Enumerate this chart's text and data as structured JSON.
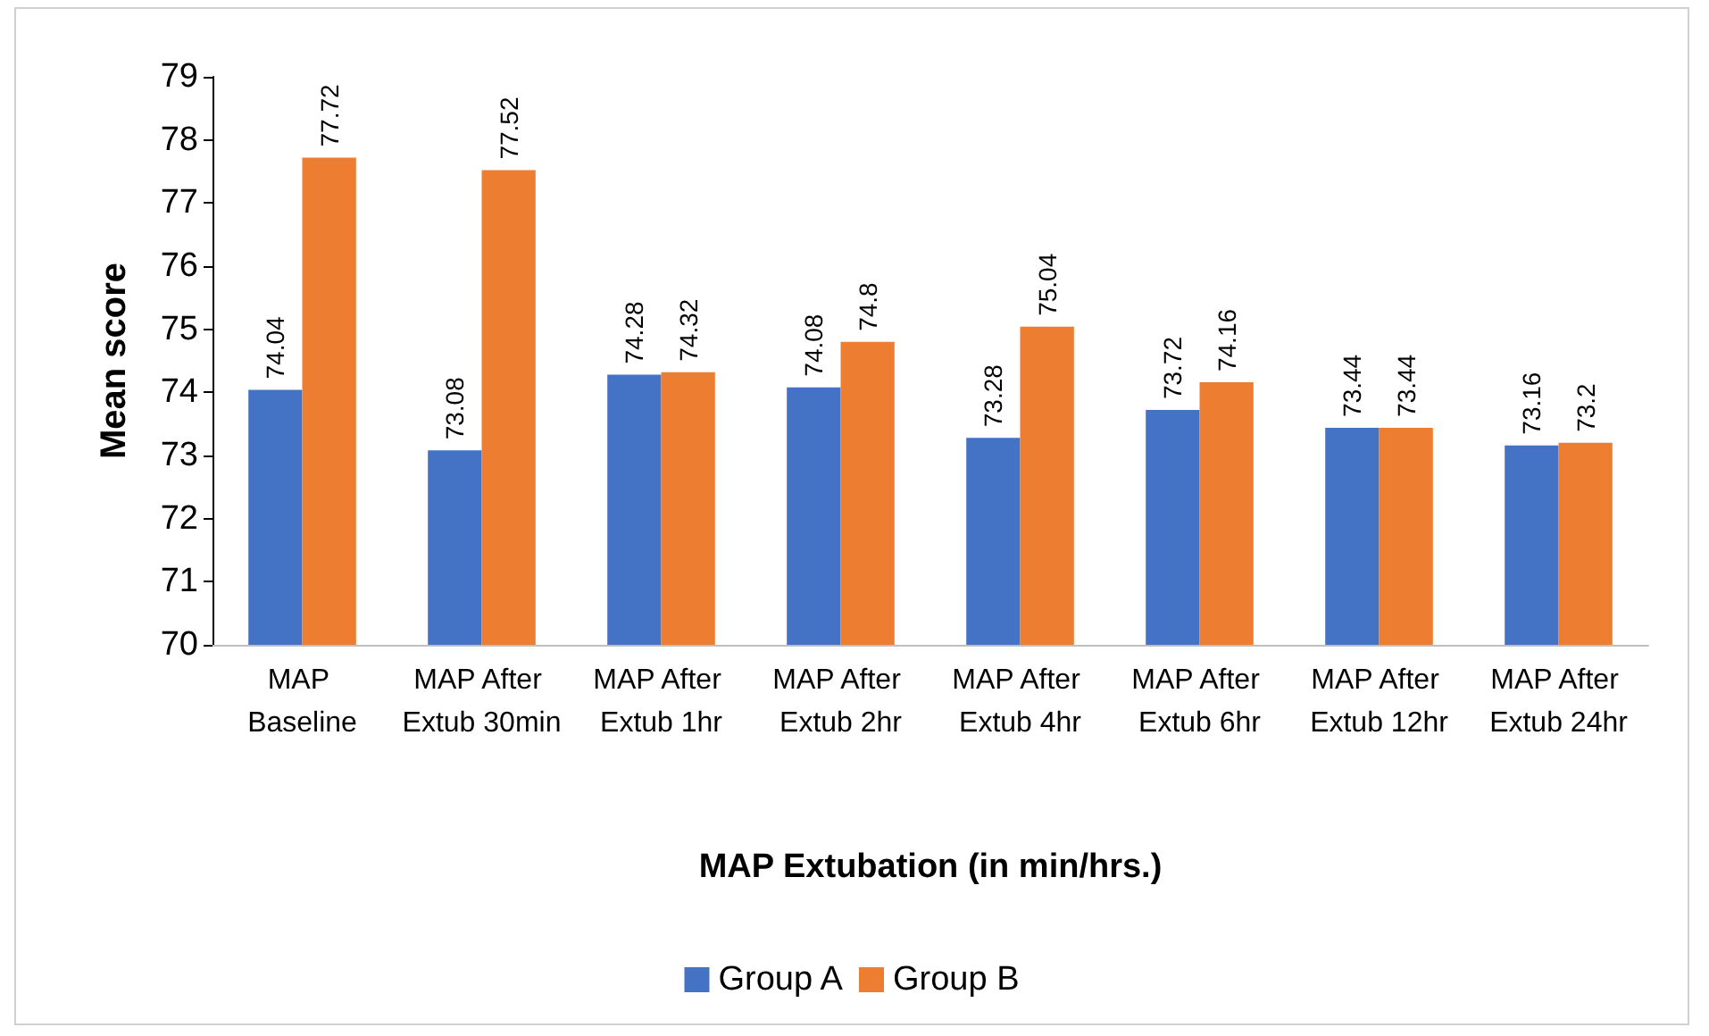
{
  "chart_data": {
    "type": "bar",
    "xlabel": "MAP Extubation (in min/hrs.)",
    "ylabel": "Mean score",
    "categories": [
      "MAP Baseline",
      "MAP After Extub 30min",
      "MAP After Extub 1hr",
      "MAP After Extub 2hr",
      "MAP After Extub 4hr",
      "MAP After Extub 6hr",
      "MAP After Extub 12hr",
      "MAP After Extub 24hr"
    ],
    "series": [
      {
        "name": "Group A",
        "color": "#4472c4",
        "values": [
          74.04,
          73.08,
          74.28,
          74.08,
          73.28,
          73.72,
          73.44,
          73.16
        ]
      },
      {
        "name": "Group B",
        "color": "#ed7d31",
        "values": [
          77.72,
          77.52,
          74.32,
          74.8,
          75.04,
          74.16,
          73.44,
          73.2
        ]
      }
    ],
    "ylim": [
      70,
      79
    ],
    "yticks": [
      70,
      71,
      72,
      73,
      74,
      75,
      76,
      77,
      78,
      79
    ],
    "grid": false,
    "legend": "bottom",
    "data_labels": true
  }
}
